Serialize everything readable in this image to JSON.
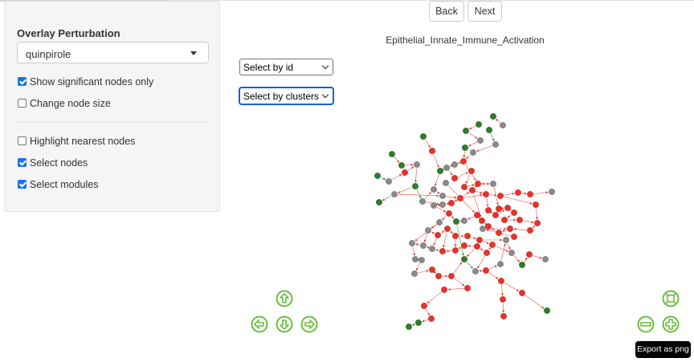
{
  "sidebar": {
    "overlay_label": "Overlay Perturbation",
    "overlay_value": "quinpirole",
    "checkboxes": [
      {
        "label": "Show significant nodes only",
        "checked": true
      },
      {
        "label": "Change node size",
        "checked": false
      },
      {
        "label": "Highlight nearest nodes",
        "checked": false
      },
      {
        "label": "Select nodes",
        "checked": true
      },
      {
        "label": "Select modules",
        "checked": true
      }
    ]
  },
  "header": {
    "back_label": "Back",
    "next_label": "Next"
  },
  "network": {
    "title": "Epithelial_Innate_Immune_Activation",
    "select_id_value": "Select by id",
    "select_cluster_value": "Select by clusters",
    "colors": {
      "up": "#e8322a",
      "down": "#2e7d2a",
      "neutral": "#8a8a8a",
      "nav": "#6abf3c"
    }
  },
  "controls": {
    "nav_icons": [
      "arrow-up-icon",
      "arrow-left-icon",
      "arrow-down-icon",
      "arrow-right-icon",
      "zoom-fit-icon",
      "zoom-out-icon",
      "zoom-in-icon"
    ],
    "export_label": "Export as png"
  }
}
